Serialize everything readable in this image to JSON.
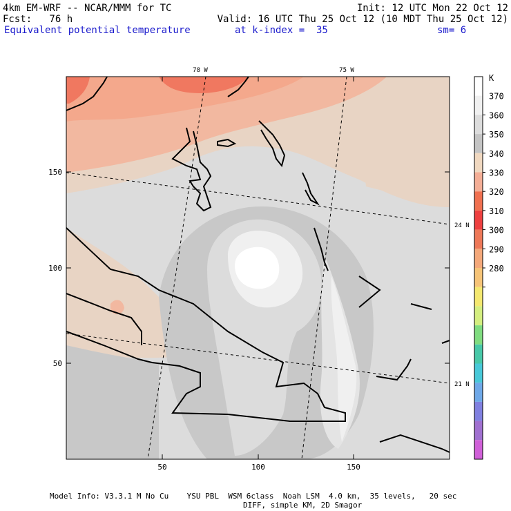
{
  "header": {
    "model": "4km EM-WRF -- NCAR/MMM for TC",
    "init": "Init: 12 UTC Mon 22 Oct 12",
    "fcst": "Fcst:   76 h",
    "valid": "Valid: 16 UTC Thu 25 Oct 12 (10 MDT Thu 25 Oct 12)",
    "field": "Equivalent potential temperature",
    "level": "at k-index =  35",
    "smooth": "sm= 6"
  },
  "map": {
    "lon_labels": [
      "78 W",
      "75 W"
    ],
    "lat_labels": [
      "24 N",
      "21 N"
    ],
    "x_ticks": [
      "50",
      "100",
      "150"
    ],
    "y_ticks": [
      "50",
      "100",
      "150"
    ],
    "x_range": [
      0,
      199
    ],
    "y_range": [
      0,
      199
    ],
    "colors": {
      "far_warm": "#e8d8c8",
      "band_350": "#f0c8b0",
      "band_360": "#c8c8c8",
      "band_gray2": "#dcdcdc",
      "band_light": "#ececec",
      "band_white": "#ffffff",
      "band_345": "#f4a890",
      "band_340": "#f07860"
    }
  },
  "colorbar": {
    "unit": "K",
    "labels": [
      "370",
      "360",
      "350",
      "340",
      "330",
      "320",
      "310",
      "300",
      "290",
      "280"
    ],
    "colors": [
      "#ffffff",
      "#f0f0f0",
      "#dcdcdc",
      "#c4c4c4",
      "#f0d8c0",
      "#f4ae96",
      "#f07050",
      "#ee4040",
      "#ee7858",
      "#f4a87a",
      "#f6c478",
      "#f4e870",
      "#d4ee80",
      "#80dc80",
      "#48c8a8",
      "#48c8d8",
      "#6ea8e8",
      "#8080e0",
      "#a070d0",
      "#d060d8"
    ]
  },
  "footer": {
    "line1": "Model Info: V3.3.1 M No Cu    YSU PBL  WSM 6class  Noah LSM  4.0 km,  35 levels,   20 sec",
    "line2": "DIFF, simple KM, 2D Smagor"
  }
}
